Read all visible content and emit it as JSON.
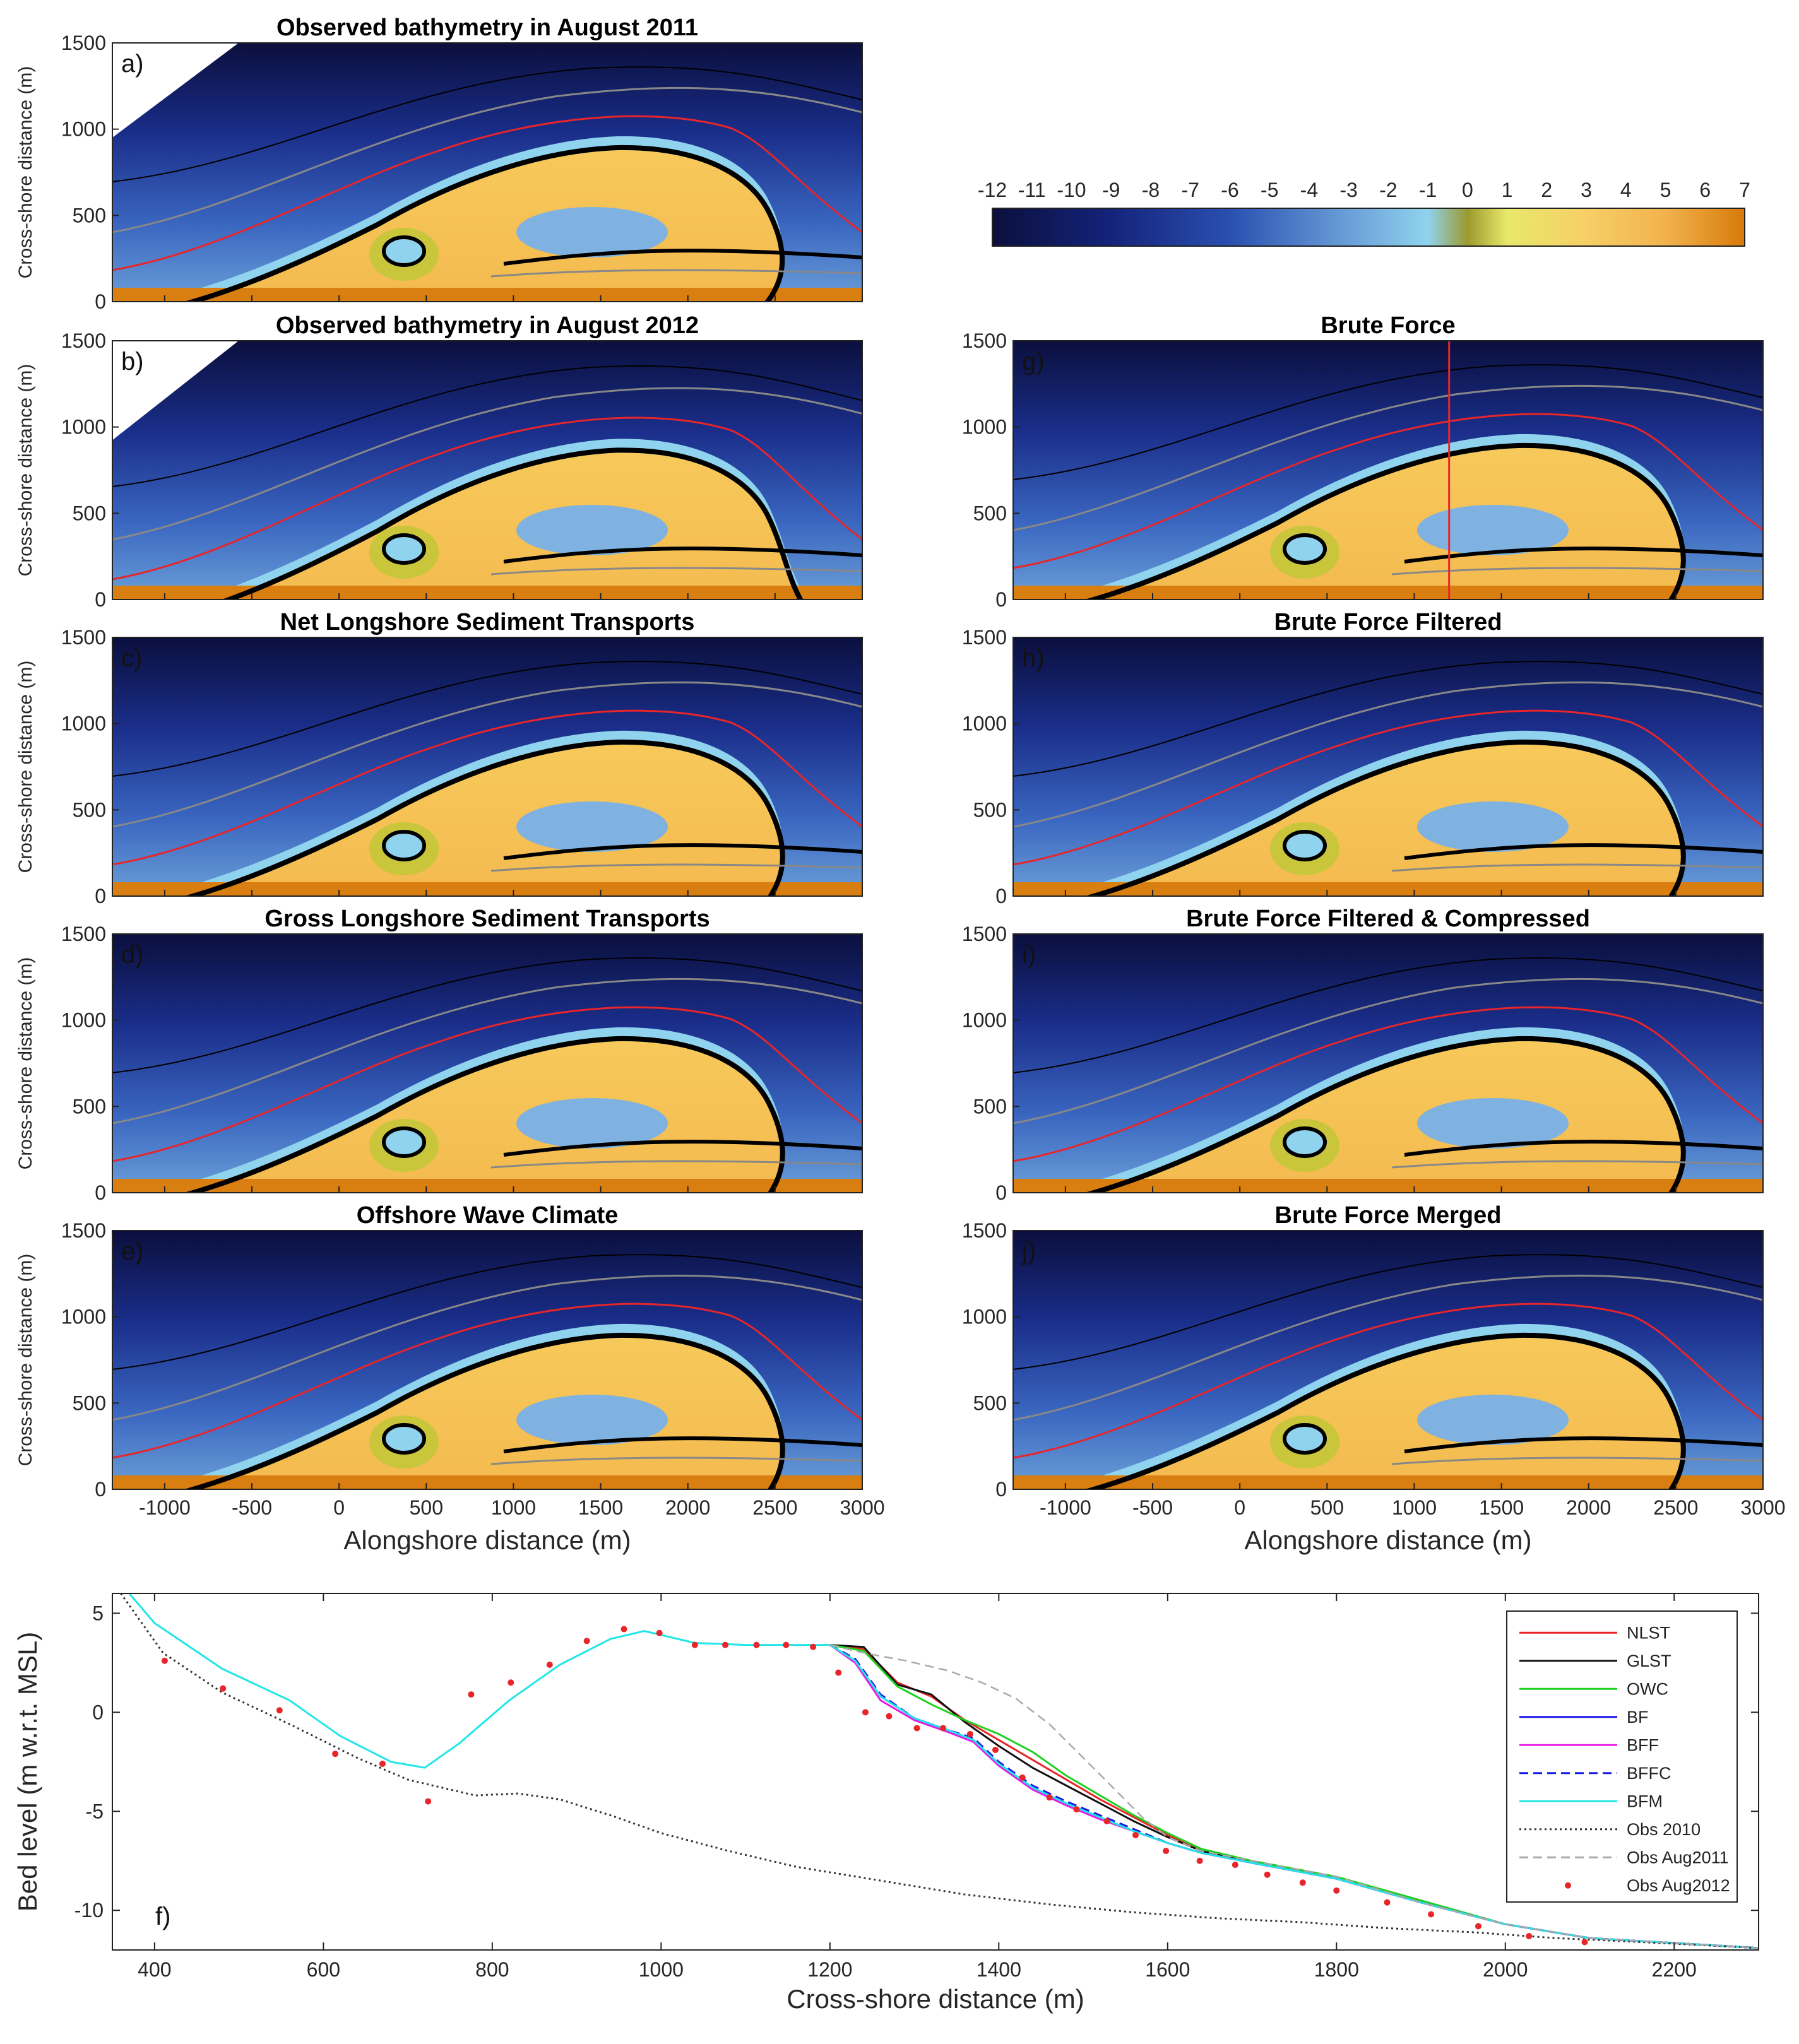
{
  "colorbar": {
    "ticks": [
      "-12",
      "-11",
      "-10",
      "-9",
      "-8",
      "-7",
      "-6",
      "-5",
      "-4",
      "-3",
      "-2",
      "-1",
      "0",
      "1",
      "2",
      "3",
      "4",
      "5",
      "6",
      "7"
    ],
    "min": -12,
    "max": 7,
    "stops": [
      {
        "v": -12,
        "c": "#0b0f3d"
      },
      {
        "v": -9,
        "c": "#14237a"
      },
      {
        "v": -6,
        "c": "#2a4fb0"
      },
      {
        "v": -3,
        "c": "#6a9fd8"
      },
      {
        "v": -1,
        "c": "#8fd3ee"
      },
      {
        "v": 0,
        "c": "#9c9a2e"
      },
      {
        "v": 1,
        "c": "#e8e86a"
      },
      {
        "v": 3,
        "c": "#f6cf66"
      },
      {
        "v": 5,
        "c": "#f2b24d"
      },
      {
        "v": 7,
        "c": "#d87a0a"
      }
    ]
  },
  "map_panels": [
    {
      "letter": "a)",
      "title": "Observed bathymetry in August 2011",
      "variant": "obs2011"
    },
    {
      "letter": "b)",
      "title": "Observed bathymetry in August 2012",
      "variant": "obs2012"
    },
    {
      "letter": "c)",
      "title": "Net Longshore Sediment Transports",
      "variant": "model"
    },
    {
      "letter": "d)",
      "title": "Gross Longshore Sediment Transports",
      "variant": "model"
    },
    {
      "letter": "e)",
      "title": "Offshore Wave Climate",
      "variant": "model"
    },
    {
      "letter": "g)",
      "title": "Brute Force",
      "variant": "model",
      "transect_x": 1200
    },
    {
      "letter": "h)",
      "title": "Brute Force Filtered",
      "variant": "model"
    },
    {
      "letter": "i)",
      "title": "Brute Force Filtered & Compressed",
      "variant": "model"
    },
    {
      "letter": "j)",
      "title": "Brute Force Merged",
      "variant": "model"
    }
  ],
  "map_axes": {
    "ylabel": "Cross-shore distance (m)",
    "xlabel": "Alongshore distance (m)",
    "yticks": [
      "0",
      "500",
      "1000",
      "1500"
    ],
    "xticks": [
      "-1000",
      "-500",
      "0",
      "500",
      "1000",
      "1500",
      "2000",
      "2500",
      "3000"
    ],
    "xlim": [
      -1300,
      3000
    ],
    "ylim": [
      0,
      1500
    ]
  },
  "chart_data": {
    "type": "line",
    "panel": "f)",
    "xlabel": "Cross-shore distance (m)",
    "ylabel": "Bed level (m w.r.t. MSL)",
    "xlim": [
      350,
      2300
    ],
    "ylim": [
      -12,
      6
    ],
    "xticks": [
      "400",
      "600",
      "800",
      "1000",
      "1200",
      "1400",
      "1600",
      "1800",
      "2000",
      "2200"
    ],
    "yticks": [
      "5",
      "0",
      "-5",
      "-10"
    ],
    "legend_position": "top-right",
    "series": [
      {
        "name": "NLST",
        "color": "#e8252a",
        "dash": "solid",
        "x": [
          1200,
          1240,
          1280,
          1320,
          1360,
          1400,
          1440,
          1480,
          1520,
          1560,
          1600,
          1640,
          1700,
          1800,
          1900,
          2000,
          2100,
          2300
        ],
        "y": [
          3.4,
          3.2,
          1.5,
          0.8,
          -0.4,
          -1.4,
          -2.4,
          -3.4,
          -4.4,
          -5.3,
          -6.2,
          -7.0,
          -7.6,
          -8.4,
          -9.6,
          -10.7,
          -11.4,
          -11.9
        ]
      },
      {
        "name": "GLST",
        "color": "#111111",
        "dash": "solid",
        "x": [
          1200,
          1240,
          1280,
          1320,
          1360,
          1400,
          1440,
          1480,
          1520,
          1560,
          1600,
          1640,
          1700,
          1800,
          1900,
          2000,
          2100,
          2300
        ],
        "y": [
          3.4,
          3.3,
          1.4,
          0.9,
          -0.5,
          -1.7,
          -2.8,
          -3.7,
          -4.6,
          -5.5,
          -6.3,
          -7.0,
          -7.6,
          -8.4,
          -9.6,
          -10.7,
          -11.4,
          -11.9
        ]
      },
      {
        "name": "OWC",
        "color": "#1fd11f",
        "dash": "solid",
        "x": [
          1200,
          1240,
          1280,
          1320,
          1360,
          1400,
          1440,
          1480,
          1520,
          1560,
          1600,
          1640,
          1700,
          1800,
          1900,
          2000,
          2100,
          2300
        ],
        "y": [
          3.4,
          3.1,
          1.3,
          0.4,
          -0.4,
          -1.1,
          -2.0,
          -3.2,
          -4.2,
          -5.2,
          -6.1,
          -6.9,
          -7.5,
          -8.3,
          -9.5,
          -10.7,
          -11.4,
          -11.9
        ]
      },
      {
        "name": "BF",
        "color": "#1a1ae6",
        "dash": "solid",
        "x": [
          1200,
          1230,
          1260,
          1300,
          1340,
          1370,
          1400,
          1440,
          1480,
          1520,
          1560,
          1600,
          1640,
          1700,
          1800,
          1900,
          2000,
          2100,
          2300
        ],
        "y": [
          3.4,
          2.6,
          0.8,
          -0.3,
          -0.9,
          -1.4,
          -2.6,
          -3.8,
          -4.6,
          -5.3,
          -6.0,
          -6.6,
          -7.1,
          -7.6,
          -8.4,
          -9.6,
          -10.7,
          -11.4,
          -11.9
        ]
      },
      {
        "name": "BFF",
        "color": "#e61ae6",
        "dash": "solid",
        "x": [
          1200,
          1230,
          1260,
          1300,
          1340,
          1370,
          1400,
          1440,
          1480,
          1520,
          1560,
          1600,
          1640,
          1700,
          1800,
          1900,
          2000,
          2100,
          2300
        ],
        "y": [
          3.4,
          2.5,
          0.6,
          -0.4,
          -1.0,
          -1.5,
          -2.7,
          -3.9,
          -4.7,
          -5.4,
          -6.0,
          -6.6,
          -7.1,
          -7.6,
          -8.4,
          -9.6,
          -10.7,
          -11.4,
          -11.9
        ]
      },
      {
        "name": "BFFC",
        "color": "#1a1ae6",
        "dash": "dashed",
        "x": [
          1200,
          1230,
          1260,
          1300,
          1340,
          1370,
          1400,
          1440,
          1480,
          1520,
          1560,
          1600,
          1640,
          1700,
          1800,
          1900,
          2000,
          2100,
          2300
        ],
        "y": [
          3.4,
          2.7,
          0.9,
          -0.3,
          -0.9,
          -1.3,
          -2.5,
          -3.7,
          -4.5,
          -5.2,
          -5.9,
          -6.6,
          -7.1,
          -7.6,
          -8.4,
          -9.6,
          -10.7,
          -11.4,
          -11.9
        ]
      },
      {
        "name": "BFM",
        "color": "#22e6e6",
        "dash": "solid",
        "x": [
          350,
          400,
          480,
          560,
          620,
          680,
          720,
          760,
          820,
          880,
          940,
          980,
          1040,
          1100,
          1160,
          1200,
          1230,
          1260,
          1300,
          1340,
          1370,
          1400,
          1440,
          1480,
          1520,
          1560,
          1600,
          1640,
          1700,
          1800,
          1900,
          2000,
          2100,
          2300
        ],
        "y": [
          7.0,
          4.5,
          2.2,
          0.6,
          -1.2,
          -2.5,
          -2.8,
          -1.6,
          0.6,
          2.4,
          3.7,
          4.1,
          3.5,
          3.4,
          3.4,
          3.4,
          2.6,
          0.8,
          -0.3,
          -0.9,
          -1.4,
          -2.6,
          -3.8,
          -4.6,
          -5.3,
          -6.0,
          -6.6,
          -7.1,
          -7.6,
          -8.4,
          -9.6,
          -10.7,
          -11.4,
          -11.9
        ]
      },
      {
        "name": "Obs 2010",
        "color": "#333333",
        "dash": "dotted",
        "x": [
          360,
          410,
          480,
          560,
          640,
          700,
          780,
          830,
          880,
          940,
          1000,
          1080,
          1160,
          1260,
          1360,
          1460,
          1560,
          1660,
          1760,
          1860,
          1960,
          2060,
          2160,
          2300
        ],
        "y": [
          6.0,
          3.0,
          1.0,
          -0.6,
          -2.3,
          -3.4,
          -4.2,
          -4.1,
          -4.4,
          -5.2,
          -6.1,
          -7.0,
          -7.8,
          -8.5,
          -9.2,
          -9.7,
          -10.1,
          -10.4,
          -10.6,
          -10.9,
          -11.1,
          -11.4,
          -11.6,
          -11.9
        ]
      },
      {
        "name": "Obs Aug2011",
        "color": "#aaaaaa",
        "dash": "dashed",
        "x": [
          1200,
          1240,
          1290,
          1340,
          1380,
          1420,
          1460,
          1500,
          1540,
          1570,
          1600,
          1640,
          1700,
          1800,
          1900,
          2000,
          2100,
          2300
        ],
        "y": [
          3.4,
          3.0,
          2.6,
          2.1,
          1.5,
          0.7,
          -0.6,
          -2.3,
          -4.0,
          -5.3,
          -6.3,
          -7.0,
          -7.5,
          -8.3,
          -9.6,
          -10.7,
          -11.4,
          -11.9
        ]
      }
    ],
    "scatter": {
      "name": "Obs Aug2012",
      "color": "#e8252a",
      "x": [
        412,
        481,
        548,
        614,
        670,
        724,
        775,
        822,
        868,
        912,
        956,
        998,
        1040,
        1076,
        1113,
        1148,
        1180,
        1210,
        1242,
        1270,
        1303,
        1334,
        1366,
        1396,
        1428,
        1460,
        1492,
        1528,
        1562,
        1598,
        1638,
        1680,
        1718,
        1760,
        1800,
        1860,
        1912,
        1968,
        2028,
        2094
      ],
      "y": [
        2.6,
        1.2,
        0.1,
        -2.1,
        -2.6,
        -4.5,
        0.9,
        1.5,
        2.4,
        3.6,
        4.2,
        4.0,
        3.4,
        3.4,
        3.4,
        3.4,
        3.3,
        2.0,
        0.0,
        -0.2,
        -0.8,
        -0.8,
        -1.1,
        -1.9,
        -3.3,
        -4.3,
        -4.9,
        -5.5,
        -6.2,
        -7.0,
        -7.5,
        -7.7,
        -8.2,
        -8.6,
        -9.0,
        -9.6,
        -10.2,
        -10.8,
        -11.3,
        -11.6
      ]
    }
  }
}
